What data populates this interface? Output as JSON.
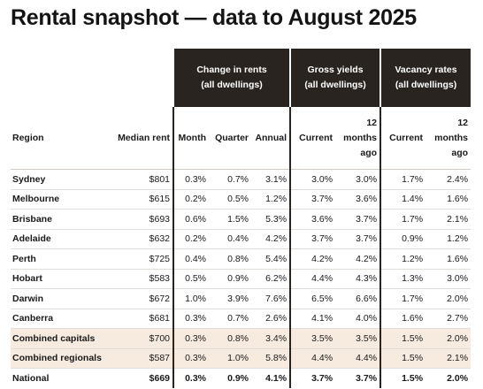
{
  "title": "Rental snapshot — data to August 2025",
  "groups": {
    "change": [
      "Change in rents",
      "(all dwellings)"
    ],
    "gross": [
      "Gross yields",
      "(all dwellings)"
    ],
    "vacancy": [
      "Vacancy rates",
      "(all dwellings)"
    ]
  },
  "columns": {
    "region": "Region",
    "median": "Median rent",
    "month": "Month",
    "quarter": "Quarter",
    "annual": "Annual",
    "gross_current": "Current",
    "gross_ago": [
      "12",
      "months",
      "ago"
    ],
    "vac_current": "Current",
    "vac_ago": [
      "12",
      "months",
      "ago"
    ]
  },
  "rows": [
    {
      "region": "Sydney",
      "median": "$801",
      "month": "0.3%",
      "quarter": "0.7%",
      "annual": "3.1%",
      "gross_current": "3.0%",
      "gross_ago": "3.0%",
      "vac_current": "1.7%",
      "vac_ago": "2.4%"
    },
    {
      "region": "Melbourne",
      "median": "$615",
      "month": "0.2%",
      "quarter": "0.5%",
      "annual": "1.2%",
      "gross_current": "3.7%",
      "gross_ago": "3.6%",
      "vac_current": "1.4%",
      "vac_ago": "1.6%"
    },
    {
      "region": "Brisbane",
      "median": "$693",
      "month": "0.6%",
      "quarter": "1.5%",
      "annual": "5.3%",
      "gross_current": "3.6%",
      "gross_ago": "3.7%",
      "vac_current": "1.7%",
      "vac_ago": "2.1%"
    },
    {
      "region": "Adelaide",
      "median": "$632",
      "month": "0.2%",
      "quarter": "0.4%",
      "annual": "4.2%",
      "gross_current": "3.7%",
      "gross_ago": "3.7%",
      "vac_current": "0.9%",
      "vac_ago": "1.2%"
    },
    {
      "region": "Perth",
      "median": "$725",
      "month": "0.4%",
      "quarter": "0.8%",
      "annual": "5.4%",
      "gross_current": "4.2%",
      "gross_ago": "4.2%",
      "vac_current": "1.2%",
      "vac_ago": "1.6%"
    },
    {
      "region": "Hobart",
      "median": "$583",
      "month": "0.5%",
      "quarter": "0.9%",
      "annual": "6.2%",
      "gross_current": "4.4%",
      "gross_ago": "4.3%",
      "vac_current": "1.3%",
      "vac_ago": "3.0%"
    },
    {
      "region": "Darwin",
      "median": "$672",
      "month": "1.0%",
      "quarter": "3.9%",
      "annual": "7.6%",
      "gross_current": "6.5%",
      "gross_ago": "6.6%",
      "vac_current": "1.7%",
      "vac_ago": "2.0%"
    },
    {
      "region": "Canberra",
      "median": "$681",
      "month": "0.3%",
      "quarter": "0.7%",
      "annual": "2.6%",
      "gross_current": "4.1%",
      "gross_ago": "4.0%",
      "vac_current": "1.6%",
      "vac_ago": "2.7%"
    },
    {
      "region": "Combined capitals",
      "median": "$700",
      "month": "0.3%",
      "quarter": "0.8%",
      "annual": "3.4%",
      "gross_current": "3.5%",
      "gross_ago": "3.5%",
      "vac_current": "1.5%",
      "vac_ago": "2.0%"
    },
    {
      "region": "Combined regionals",
      "median": "$587",
      "month": "0.3%",
      "quarter": "1.0%",
      "annual": "5.8%",
      "gross_current": "4.4%",
      "gross_ago": "4.4%",
      "vac_current": "1.5%",
      "vac_ago": "2.1%"
    },
    {
      "region": "National",
      "median": "$669",
      "month": "0.3%",
      "quarter": "0.9%",
      "annual": "4.1%",
      "gross_current": "3.7%",
      "gross_ago": "3.7%",
      "vac_current": "1.5%",
      "vac_ago": "2.0%"
    }
  ],
  "colors": {
    "header_dark": "#2a2420",
    "combined_band": "#f7ebe0"
  }
}
